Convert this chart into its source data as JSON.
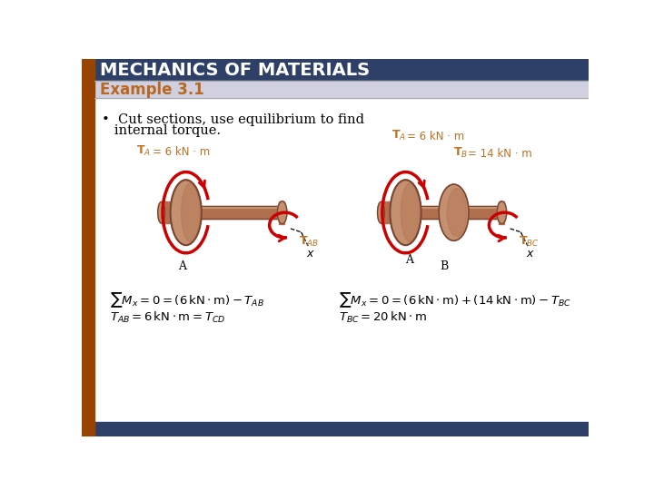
{
  "title": "MECHANICS OF MATERIALS",
  "subtitle": "Example 3.1",
  "title_bg_color": "#2e4068",
  "title_text_color": "#ffffff",
  "subtitle_bg_color": "#d0d0e0",
  "subtitle_text_color": "#b86820",
  "sidebar_color": "#994400",
  "bottom_bar_color": "#2e4068",
  "body_bg_color": "#ffffff",
  "bullet_text_line1": "•  Cut sections, use equilibrium to find",
  "bullet_text_line2": "   internal torque.",
  "brown_light": "#c8906a",
  "brown_dark": "#7a4030",
  "brown_mid": "#a86040",
  "red_arrow": "#cc0000",
  "orange_label": "#c07020",
  "black": "#000000"
}
